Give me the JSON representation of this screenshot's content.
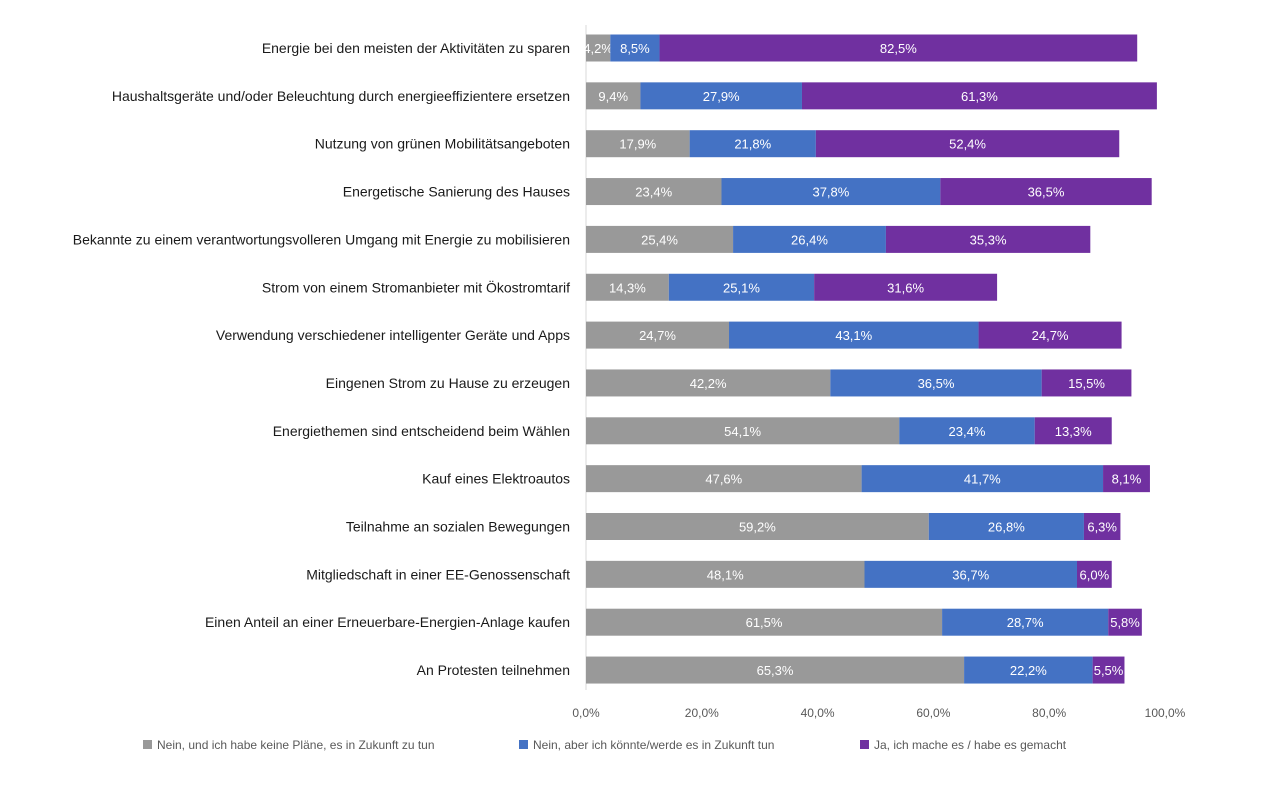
{
  "chart_data": {
    "type": "bar",
    "orientation": "horizontal",
    "stacked": true,
    "categories": [
      "Energie bei den meisten der Aktivitäten zu sparen",
      "Haushaltsgeräte und/oder Beleuchtung durch energieeffizientere ersetzen",
      "Nutzung von grünen Mobilitätsangeboten",
      "Energetische Sanierung des Hauses",
      "Bekannte zu einem verantwortungsvolleren Umgang mit Energie zu mobilisieren",
      "Strom von einem Stromanbieter mit Ökostromtarif",
      "Verwendung verschiedener intelligenter Geräte und Apps",
      "Eingenen Strom zu Hause zu erzeugen",
      "Energiethemen sind entscheidend beim Wählen",
      "Kauf eines Elektroautos",
      "Teilnahme an sozialen Bewegungen",
      "Mitgliedschaft in einer EE-Genossenschaft",
      "Einen Anteil an einer Erneuerbare-Energien-Anlage kaufen",
      "An Protesten teilnehmen"
    ],
    "series": [
      {
        "name": "Nein, und ich habe keine Pläne, es in Zukunft zu tun",
        "color": "#999999",
        "values": [
          4.2,
          9.4,
          17.9,
          23.4,
          25.4,
          14.3,
          24.7,
          42.2,
          54.1,
          47.6,
          59.2,
          48.1,
          61.5,
          65.3
        ],
        "labels": [
          "4,2%",
          "9,4%",
          "17,9%",
          "23,4%",
          "25,4%",
          "14,3%",
          "24,7%",
          "42,2%",
          "54,1%",
          "47,6%",
          "59,2%",
          "48,1%",
          "61,5%",
          "65,3%"
        ]
      },
      {
        "name": "Nein, aber ich könnte/werde es in Zukunft tun",
        "color": "#4472c4",
        "values": [
          8.5,
          27.9,
          21.8,
          37.8,
          26.4,
          25.1,
          43.1,
          36.5,
          23.4,
          41.7,
          26.8,
          36.7,
          28.7,
          22.2
        ],
        "labels": [
          "8,5%",
          "27,9%",
          "21,8%",
          "37,8%",
          "26,4%",
          "25,1%",
          "43,1%",
          "36,5%",
          "23,4%",
          "41,7%",
          "26,8%",
          "36,7%",
          "28,7%",
          "22,2%"
        ]
      },
      {
        "name": "Ja, ich mache es / habe es gemacht",
        "color": "#7030a0",
        "values": [
          82.5,
          61.3,
          52.4,
          36.5,
          35.3,
          31.6,
          24.7,
          15.5,
          13.3,
          8.1,
          6.3,
          6.0,
          5.8,
          5.5
        ],
        "labels": [
          "82,5%",
          "61,3%",
          "52,4%",
          "36,5%",
          "35,3%",
          "31,6%",
          "24,7%",
          "15,5%",
          "13,3%",
          "8,1%",
          "6,3%",
          "6,0%",
          "5,8%",
          "5,5%"
        ]
      }
    ],
    "xlim": [
      0,
      100
    ],
    "xticks": [
      0,
      20,
      40,
      60,
      80,
      100
    ],
    "xtick_labels": [
      "0,0%",
      "20,0%",
      "40,0%",
      "60,0%",
      "80,0%",
      "100,0%"
    ],
    "grid": false,
    "legend_position": "bottom"
  }
}
